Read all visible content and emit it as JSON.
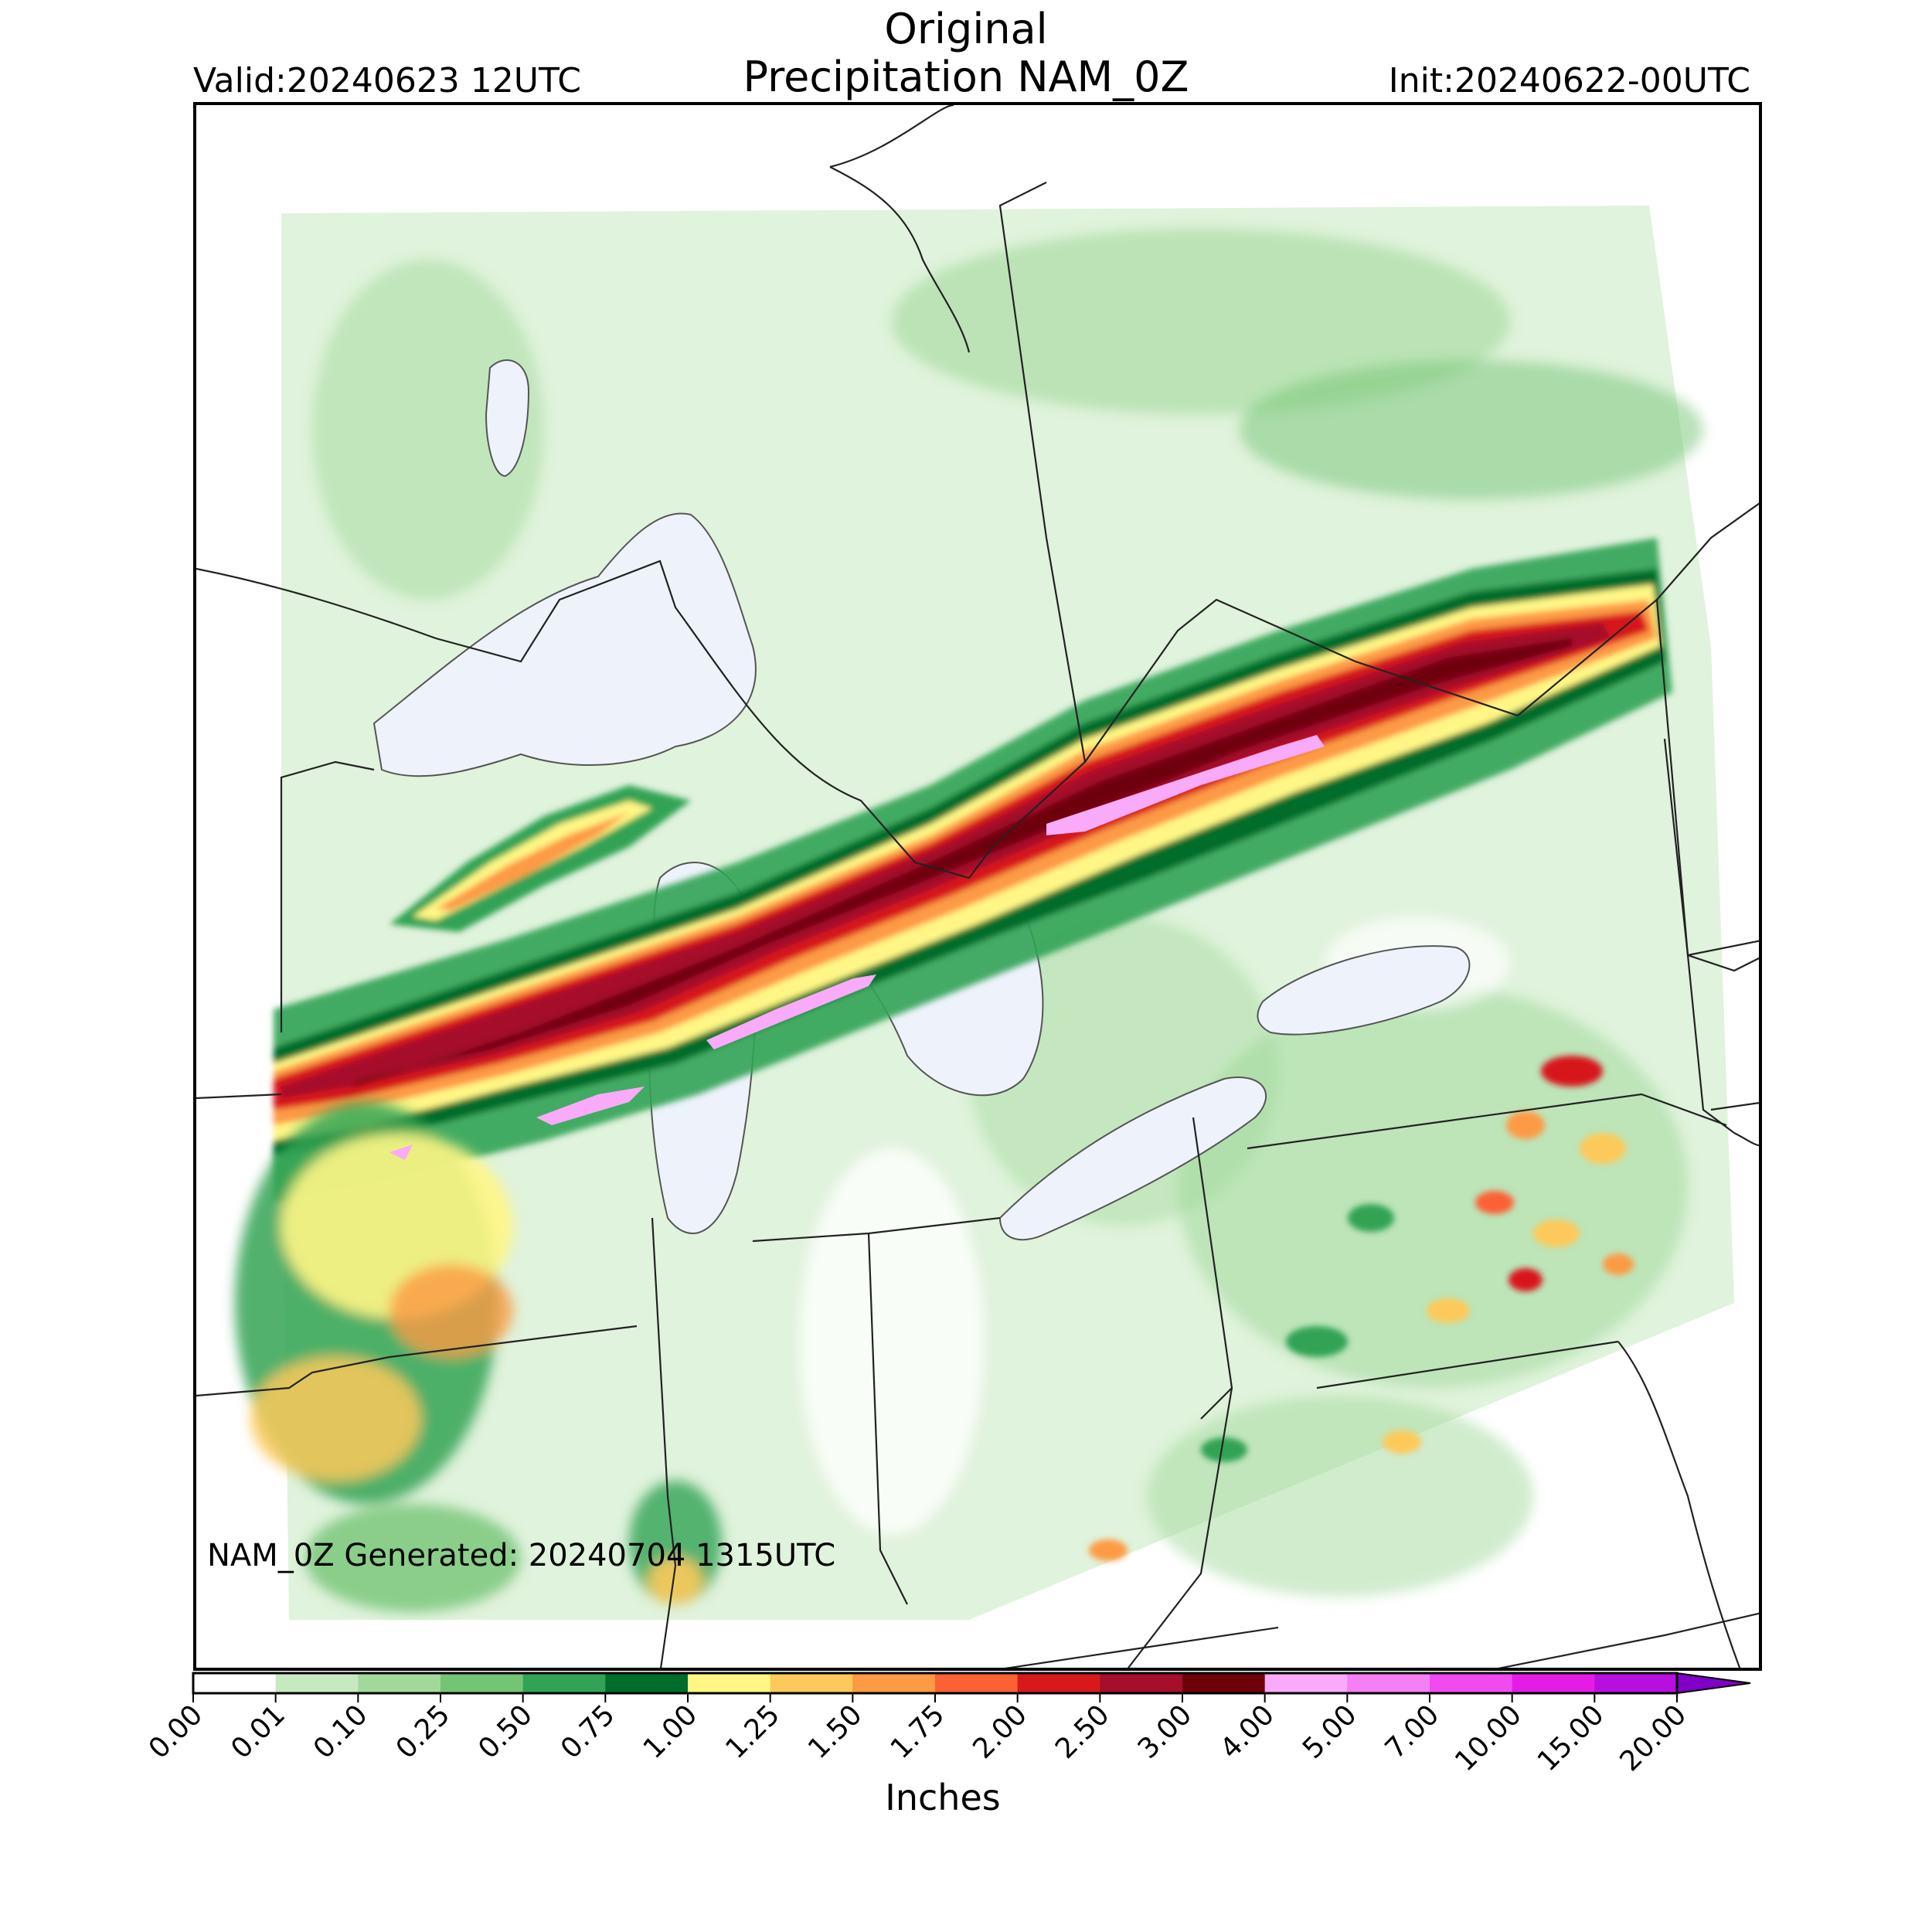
{
  "header": {
    "title_line1": "Original",
    "title_line2": "Precipitation NAM_0Z",
    "valid": "Valid:20240623 12UTC",
    "init": "Init:20240622-00UTC"
  },
  "map": {
    "generated_note": "NAM_0Z Generated: 20240704 1315UTC",
    "region": "Upper Midwest, Great Lakes and Northeast US",
    "precip_max_band_inches": "4.00-5.00"
  },
  "colorbar": {
    "label": "Inches",
    "ticks": [
      "0.00",
      "0.01",
      "0.10",
      "0.25",
      "0.50",
      "0.75",
      "1.00",
      "1.25",
      "1.50",
      "1.75",
      "2.00",
      "2.50",
      "3.00",
      "4.00",
      "5.00",
      "7.00",
      "10.00",
      "15.00",
      "20.00"
    ],
    "colors": [
      "#ffffff",
      "#c7e9c0",
      "#a1d99b",
      "#74c476",
      "#31a354",
      "#006d2c",
      "#fff685",
      "#fdc95a",
      "#fd9a44",
      "#fc6134",
      "#d7191c",
      "#a50f2b",
      "#6e0009",
      "#f9aaf9",
      "#f57ff5",
      "#f04af0",
      "#e41ce6",
      "#b80ee0",
      "#8000c8"
    ],
    "extend": "max"
  }
}
